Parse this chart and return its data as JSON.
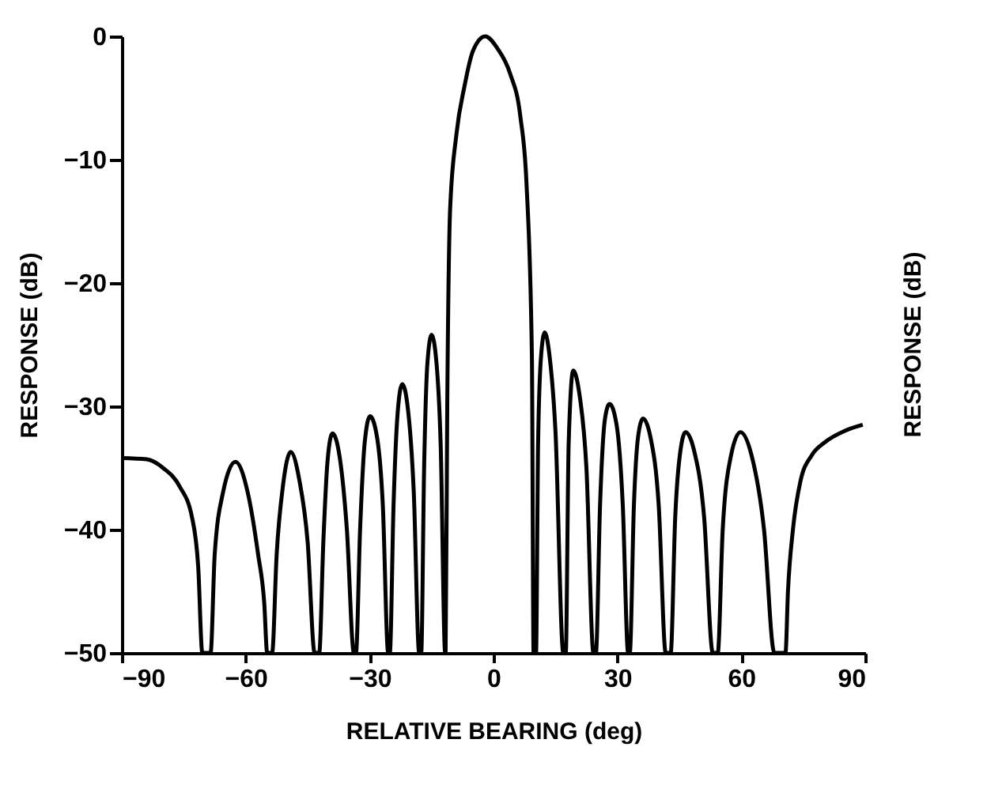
{
  "chart_data": {
    "type": "line",
    "xlabel": "RELATIVE BEARING (deg)",
    "ylabel": "RESPONSE (dB)",
    "y2label": "RESPONSE (dB)",
    "xlim": [
      -90,
      90
    ],
    "xticks": [
      -90,
      -60,
      -30,
      0,
      30,
      60,
      90
    ],
    "ylim": [
      -50,
      0
    ],
    "yticks": [
      -50,
      -40,
      -30,
      -20,
      -10,
      0
    ],
    "grid": false,
    "marker": "none",
    "line_style": "solid",
    "series": [
      {
        "color": "#000000",
        "x": [
          -90,
          -84,
          -80,
          -76,
          -73,
          -71.5,
          -70.5,
          -68.5,
          -67.5,
          -65.5,
          -62.5,
          -59.5,
          -57,
          -55.5,
          -54.8,
          -53.6,
          -52.5,
          -51,
          -49.1,
          -47,
          -45,
          -43.3,
          -42.2,
          -41.2,
          -40.2,
          -39,
          -37.3,
          -35.5,
          -33.8,
          -33.3,
          -32.3,
          -31.2,
          -29.9,
          -28.2,
          -26.8,
          -25.5,
          -25.1,
          -24.2,
          -23.2,
          -22.1,
          -20.8,
          -19.3,
          -18,
          -17.5,
          -16.8,
          -16,
          -15,
          -13.8,
          -12.8,
          -11.7,
          -11.6,
          -11.2,
          -10.5,
          -9,
          -7,
          -5,
          -2,
          1,
          4,
          6.5,
          8,
          9.3,
          9.7,
          10.3,
          10.8,
          11.5,
          12.4,
          13.6,
          15,
          16.9,
          17.5,
          18.2,
          19.3,
          20.8,
          22.5,
          24.2,
          24.8,
          25.8,
          27,
          28.1,
          29.8,
          31.3,
          32.6,
          33,
          34,
          35,
          36.2,
          38,
          40,
          41.7,
          42.9,
          44,
          45.3,
          46.5,
          48.5,
          51,
          53.1,
          54.3,
          55.5,
          57.5,
          59.8,
          62.5,
          65.5,
          68,
          70.7,
          71.3,
          72.5,
          74.3,
          77,
          80.3,
          85,
          89.4
        ],
        "values": [
          -34.2,
          -34.3,
          -35,
          -36.5,
          -39,
          -43,
          -50,
          -50,
          -42,
          -37,
          -34.5,
          -37,
          -42,
          -46,
          -50,
          -50,
          -42,
          -36.5,
          -33.7,
          -36,
          -41,
          -50,
          -50,
          -41,
          -34.5,
          -32.2,
          -34,
          -40,
          -50,
          -50,
          -40,
          -33,
          -30.8,
          -32.5,
          -38,
          -50,
          -50,
          -38,
          -30.5,
          -28.2,
          -30,
          -37,
          -50,
          -50,
          -35,
          -26.5,
          -24.2,
          -26.5,
          -33,
          -50,
          -50,
          -30,
          -14,
          -8,
          -4,
          -1.2,
          0,
          -1,
          -3,
          -6.5,
          -12,
          -26,
          -50,
          -50,
          -33,
          -26,
          -24,
          -26,
          -32,
          -50,
          -50,
          -33,
          -27.1,
          -29,
          -35,
          -50,
          -50,
          -38,
          -31,
          -29.8,
          -31.5,
          -38,
          -50,
          -50,
          -38,
          -32.5,
          -31,
          -32.5,
          -38,
          -50,
          -50,
          -39,
          -33.5,
          -32.1,
          -33.5,
          -39,
          -50,
          -50,
          -40,
          -34,
          -32.1,
          -34,
          -40,
          -50,
          -50,
          -45,
          -40,
          -36.1,
          -34,
          -32.9,
          -32,
          -31.5
        ]
      }
    ]
  }
}
